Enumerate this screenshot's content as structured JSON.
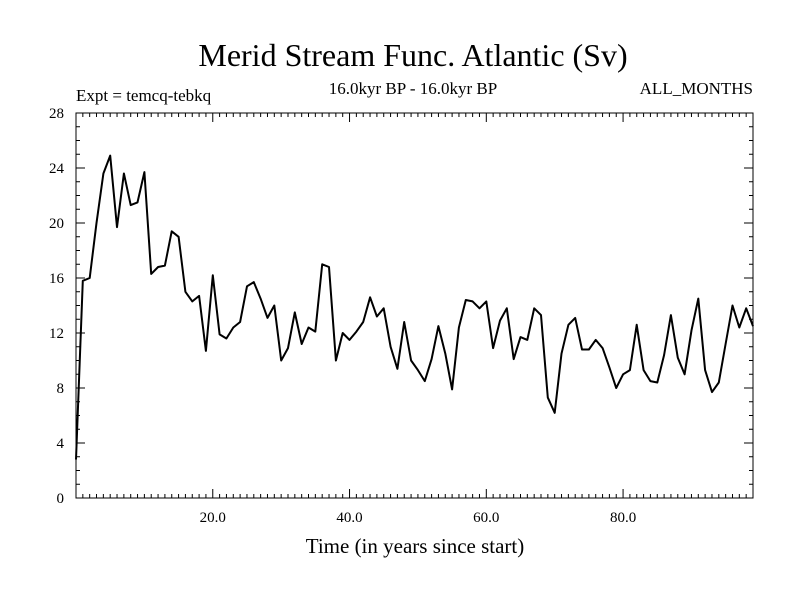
{
  "chart_data": {
    "type": "line",
    "title": "Merid Stream Func. Atlantic (Sv)",
    "subtitle": "16.0kyr BP - 16.0kyr BP",
    "left_label": "Expt = temcq-tebkq",
    "right_label": "ALL_MONTHS",
    "xlabel": "Time (in years since start)",
    "ylabel": "",
    "xlim": [
      0,
      99
    ],
    "ylim": [
      0,
      28
    ],
    "x_ticks": [
      20,
      40,
      60,
      80
    ],
    "x_tick_labels": [
      "20.0",
      "40.0",
      "60.0",
      "80.0"
    ],
    "y_ticks": [
      0,
      4,
      8,
      12,
      16,
      20,
      24,
      28
    ],
    "y_tick_labels": [
      "0",
      "4",
      "8",
      "12",
      "16",
      "20",
      "24",
      "28"
    ],
    "series": [
      {
        "name": "Merid Stream Func. Atlantic",
        "x": [
          0,
          1,
          2,
          3,
          4,
          5,
          6,
          7,
          8,
          9,
          10,
          11,
          12,
          13,
          14,
          15,
          16,
          17,
          18,
          19,
          20,
          21,
          22,
          23,
          24,
          25,
          26,
          27,
          28,
          29,
          30,
          31,
          32,
          33,
          34,
          35,
          36,
          37,
          38,
          39,
          40,
          41,
          42,
          43,
          44,
          45,
          46,
          47,
          48,
          49,
          50,
          51,
          52,
          53,
          54,
          55,
          56,
          57,
          58,
          59,
          60,
          61,
          62,
          63,
          64,
          65,
          66,
          67,
          68,
          69,
          70,
          71,
          72,
          73,
          74,
          75,
          76,
          77,
          78,
          79,
          80,
          81,
          82,
          83,
          84,
          85,
          86,
          87,
          88,
          89,
          90,
          91,
          92,
          93,
          94,
          95,
          96,
          97,
          98,
          99
        ],
        "values": [
          2.8,
          15.8,
          16.0,
          20.0,
          23.6,
          24.9,
          19.7,
          23.6,
          21.3,
          21.5,
          23.7,
          16.3,
          16.8,
          16.9,
          19.4,
          19.0,
          15.0,
          14.3,
          14.7,
          10.7,
          16.2,
          11.9,
          11.6,
          12.4,
          12.8,
          15.4,
          15.7,
          14.5,
          13.1,
          14.0,
          10.0,
          10.9,
          13.5,
          11.2,
          12.4,
          12.1,
          17.0,
          16.8,
          10.0,
          12.0,
          11.5,
          12.1,
          12.8,
          14.6,
          13.2,
          13.8,
          11.0,
          9.4,
          12.8,
          10.0,
          9.3,
          8.5,
          10.1,
          12.5,
          10.5,
          7.9,
          12.4,
          14.4,
          14.3,
          13.8,
          14.3,
          10.9,
          12.9,
          13.8,
          10.1,
          11.7,
          11.5,
          13.8,
          13.3,
          7.3,
          6.2,
          10.5,
          12.6,
          13.1,
          10.8,
          10.8,
          11.5,
          10.9,
          9.5,
          8.0,
          9.0,
          9.3,
          12.6,
          9.3,
          8.5,
          8.4,
          10.4,
          13.3,
          10.2,
          9.0,
          12.2,
          14.5,
          9.3,
          7.7,
          8.4,
          11.2,
          14.0,
          12.4,
          13.8,
          12.5
        ]
      }
    ]
  }
}
